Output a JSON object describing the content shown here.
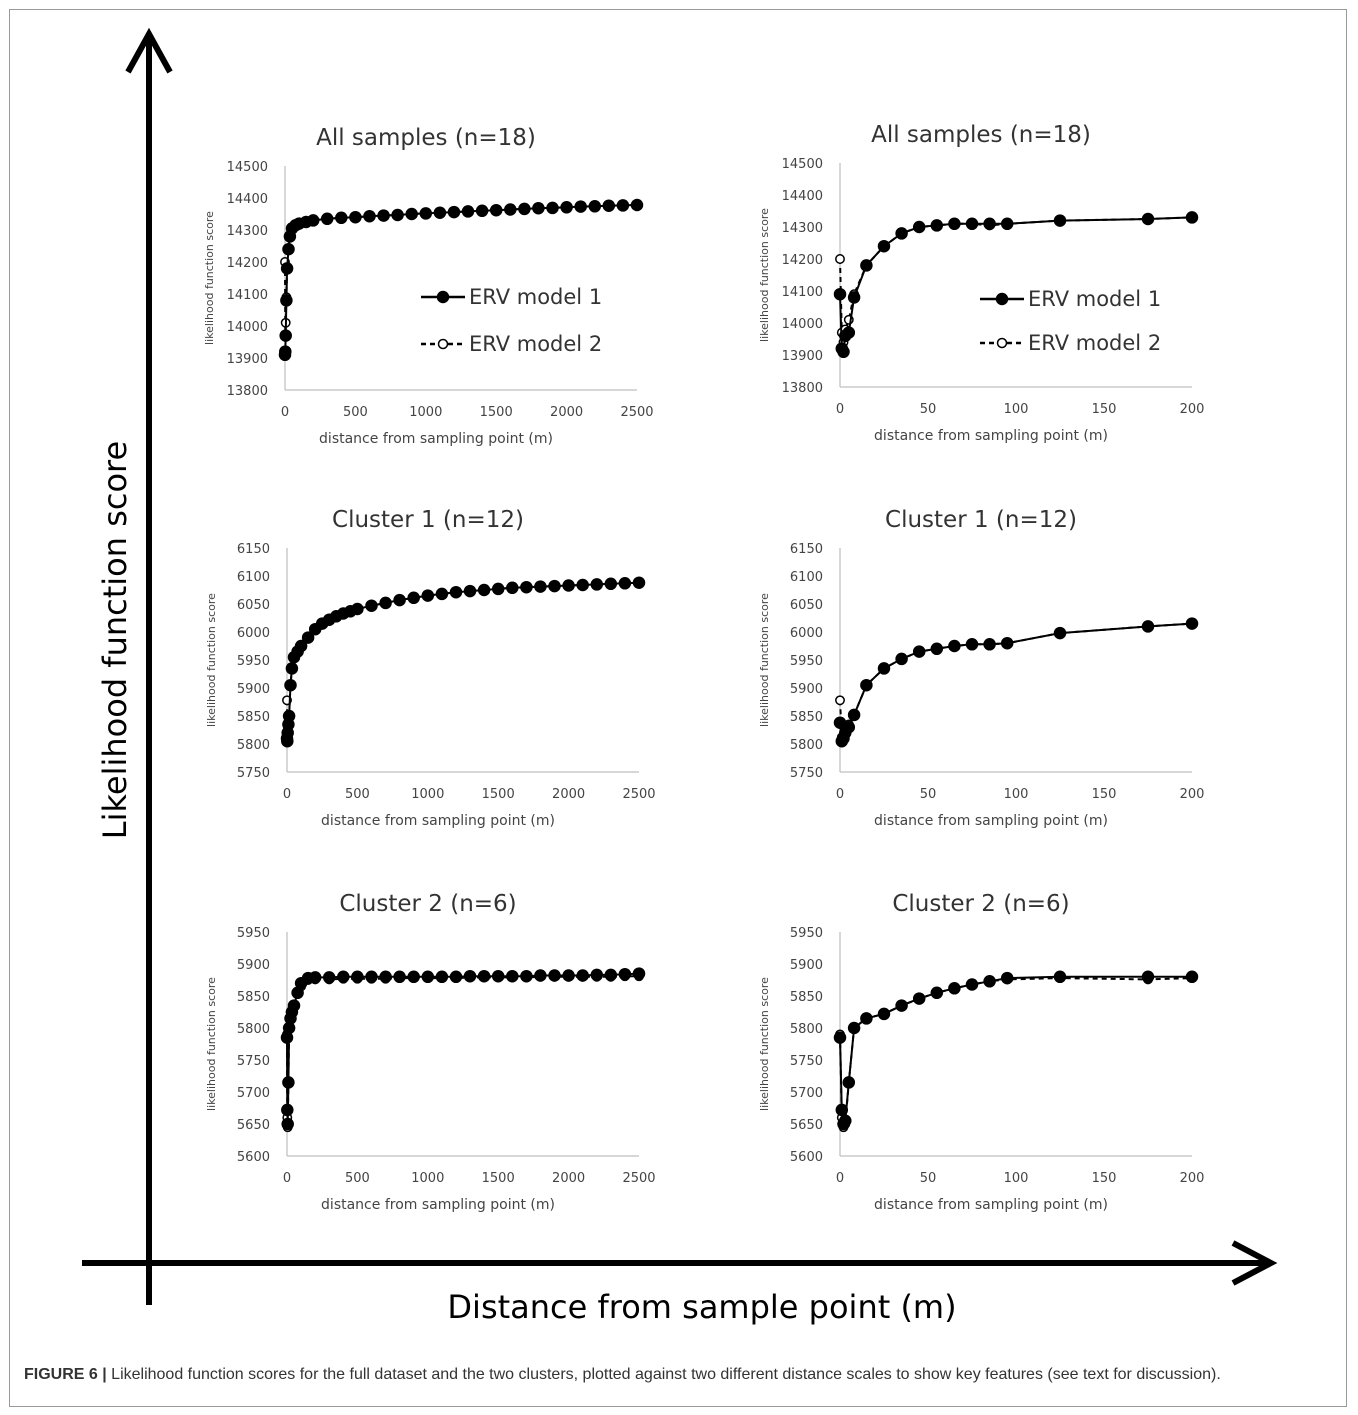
{
  "figure": {
    "big_y_label": "Likelihood function score",
    "big_x_label": "Distance from sample point (m)",
    "caption_label": "FIGURE 6 |",
    "caption_text": " Likelihood function scores for the full dataset and the two clusters, plotted against two different distance scales to show key features (see text for discussion)."
  },
  "colors": {
    "series": "#000000",
    "axis": "#bfbfbf",
    "text": "#333333"
  },
  "chart_data": [
    {
      "id": "all-samples-full",
      "type": "line",
      "title": "All samples (n=18)",
      "xlabel": "distance from sampling point (m)",
      "ylabel": "likelihood function score",
      "xlim": [
        0,
        2500
      ],
      "ylim": [
        13800,
        14500
      ],
      "xticks": [
        "0",
        "500",
        "1000",
        "1500",
        "2000",
        "2500"
      ],
      "yticks": [
        "13800",
        "13900",
        "14000",
        "14100",
        "14200",
        "14300",
        "14400",
        "14500"
      ],
      "legend": "center-right",
      "series": [
        {
          "name": "ERV model 1",
          "style": "solid-filled",
          "x": [
            0,
            2,
            5,
            10,
            15,
            25,
            35,
            50,
            75,
            100,
            150,
            200,
            300,
            400,
            500,
            600,
            700,
            800,
            900,
            1000,
            1100,
            1200,
            1300,
            1400,
            1500,
            1600,
            1700,
            1800,
            1900,
            2000,
            2100,
            2200,
            2300,
            2400,
            2500
          ],
          "y": [
            13910,
            13920,
            13970,
            14080,
            14180,
            14240,
            14280,
            14305,
            14315,
            14320,
            14325,
            14330,
            14335,
            14338,
            14340,
            14343,
            14345,
            14347,
            14350,
            14352,
            14354,
            14356,
            14358,
            14360,
            14362,
            14364,
            14366,
            14368,
            14369,
            14371,
            14373,
            14374,
            14376,
            14377,
            14378
          ]
        },
        {
          "name": "ERV model 2",
          "style": "dashed-open",
          "x": [
            0,
            2,
            5,
            10,
            15,
            25,
            35,
            50,
            75,
            100,
            150,
            200,
            300,
            400,
            500,
            600,
            700,
            800,
            900,
            1000,
            1100,
            1200,
            1300,
            1400,
            1500,
            1600,
            1700,
            1800,
            1900,
            2000,
            2100,
            2200,
            2300,
            2400,
            2500
          ],
          "y": [
            14200,
            13970,
            14010,
            14090,
            14180,
            14240,
            14280,
            14305,
            14315,
            14320,
            14325,
            14330,
            14335,
            14338,
            14340,
            14343,
            14345,
            14347,
            14350,
            14352,
            14354,
            14356,
            14358,
            14360,
            14362,
            14364,
            14366,
            14368,
            14369,
            14371,
            14373,
            14374,
            14376,
            14377,
            14378
          ]
        }
      ]
    },
    {
      "id": "all-samples-zoom",
      "type": "line",
      "title": "All samples (n=18)",
      "xlabel": "distance from sampling point (m)",
      "ylabel": "likelihood function score",
      "xlim": [
        0,
        200
      ],
      "ylim": [
        13800,
        14500
      ],
      "xticks": [
        "0",
        "50",
        "100",
        "150",
        "200"
      ],
      "yticks": [
        "13800",
        "13900",
        "14000",
        "14100",
        "14200",
        "14300",
        "14400",
        "14500"
      ],
      "legend": "center-right",
      "series": [
        {
          "name": "ERV model 1",
          "style": "solid-filled",
          "x": [
            0,
            1,
            2,
            3,
            5,
            8,
            15,
            25,
            35,
            45,
            55,
            65,
            75,
            85,
            95,
            125,
            175,
            200
          ],
          "y": [
            14090,
            13920,
            13910,
            13960,
            13970,
            14080,
            14180,
            14240,
            14280,
            14300,
            14305,
            14310,
            14310,
            14310,
            14310,
            14320,
            14325,
            14330
          ]
        },
        {
          "name": "ERV model 2",
          "style": "dashed-open",
          "x": [
            0,
            1,
            2,
            3,
            5,
            8,
            15,
            25,
            35,
            45,
            55,
            65,
            75,
            85,
            95,
            125,
            175,
            200
          ],
          "y": [
            14200,
            13970,
            13940,
            13980,
            14010,
            14090,
            14180,
            14240,
            14280,
            14300,
            14305,
            14310,
            14310,
            14305,
            14310,
            14320,
            14325,
            14330
          ]
        }
      ]
    },
    {
      "id": "cluster1-full",
      "type": "line",
      "title": "Cluster 1 (n=12)",
      "xlabel": "distance from sampling point (m)",
      "ylabel": "likelihood function score",
      "xlim": [
        0,
        2500
      ],
      "ylim": [
        5750,
        6150
      ],
      "xticks": [
        "0",
        "500",
        "1000",
        "1500",
        "2000",
        "2500"
      ],
      "yticks": [
        "5750",
        "5800",
        "5850",
        "5900",
        "5950",
        "6000",
        "6050",
        "6100",
        "6150"
      ],
      "series": [
        {
          "name": "ERV model 1",
          "style": "solid-filled",
          "x": [
            0,
            2,
            5,
            10,
            15,
            25,
            35,
            50,
            75,
            100,
            150,
            200,
            250,
            300,
            350,
            400,
            450,
            500,
            600,
            700,
            800,
            900,
            1000,
            1100,
            1200,
            1300,
            1400,
            1500,
            1600,
            1700,
            1800,
            1900,
            2000,
            2100,
            2200,
            2300,
            2400,
            2500
          ],
          "y": [
            5810,
            5805,
            5820,
            5835,
            5850,
            5905,
            5935,
            5955,
            5965,
            5975,
            5990,
            6005,
            6015,
            6022,
            6028,
            6033,
            6037,
            6041,
            6047,
            6052,
            6057,
            6061,
            6065,
            6068,
            6071,
            6073,
            6075,
            6077,
            6079,
            6080,
            6081,
            6082,
            6083,
            6084,
            6085,
            6086,
            6087,
            6088
          ]
        },
        {
          "name": "ERV model 2",
          "style": "dashed-open",
          "x": [
            0,
            2,
            5,
            10,
            15,
            25,
            35,
            50,
            75,
            100,
            150,
            200,
            250,
            300,
            350,
            400,
            450,
            500,
            600,
            700,
            800,
            900,
            1000,
            1100,
            1200,
            1300,
            1400,
            1500,
            1600,
            1700,
            1800,
            1900,
            2000,
            2100,
            2200,
            2300,
            2400,
            2500
          ],
          "y": [
            5878,
            5815,
            5825,
            5840,
            5852,
            5905,
            5935,
            5955,
            5965,
            5975,
            5990,
            6005,
            6015,
            6022,
            6028,
            6033,
            6037,
            6041,
            6047,
            6052,
            6057,
            6061,
            6065,
            6068,
            6071,
            6073,
            6075,
            6077,
            6079,
            6080,
            6081,
            6082,
            6083,
            6084,
            6085,
            6086,
            6087,
            6088
          ]
        }
      ]
    },
    {
      "id": "cluster1-zoom",
      "type": "line",
      "title": "Cluster 1 (n=12)",
      "xlabel": "distance from sampling point (m)",
      "ylabel": "likelihood function score",
      "xlim": [
        0,
        200
      ],
      "ylim": [
        5750,
        6150
      ],
      "xticks": [
        "0",
        "50",
        "100",
        "150",
        "200"
      ],
      "yticks": [
        "5750",
        "5800",
        "5850",
        "5900",
        "5950",
        "6000",
        "6050",
        "6100",
        "6150"
      ],
      "series": [
        {
          "name": "ERV model 1",
          "style": "solid-filled",
          "x": [
            0,
            1,
            2,
            3,
            5,
            8,
            15,
            25,
            35,
            45,
            55,
            65,
            75,
            85,
            95,
            125,
            175,
            200
          ],
          "y": [
            5838,
            5805,
            5810,
            5820,
            5830,
            5852,
            5905,
            5935,
            5952,
            5965,
            5970,
            5975,
            5978,
            5978,
            5980,
            5998,
            6010,
            6015
          ]
        },
        {
          "name": "ERV model 2",
          "style": "dashed-open",
          "x": [
            0,
            1,
            2,
            3,
            5,
            8,
            15,
            25,
            35,
            45,
            55,
            65,
            75,
            85,
            95,
            125,
            175,
            200
          ],
          "y": [
            5878,
            5812,
            5815,
            5825,
            5835,
            5852,
            5905,
            5935,
            5952,
            5965,
            5970,
            5975,
            5978,
            5978,
            5980,
            5998,
            6010,
            6015
          ]
        }
      ]
    },
    {
      "id": "cluster2-full",
      "type": "line",
      "title": "Cluster 2 (n=6)",
      "xlabel": "distance from sampling point (m)",
      "ylabel": "likelihood function score",
      "xlim": [
        0,
        2500
      ],
      "ylim": [
        5600,
        5950
      ],
      "xticks": [
        "0",
        "500",
        "1000",
        "1500",
        "2000",
        "2500"
      ],
      "yticks": [
        "5600",
        "5650",
        "5700",
        "5750",
        "5800",
        "5850",
        "5900",
        "5950"
      ],
      "series": [
        {
          "name": "ERV model 1",
          "style": "solid-filled",
          "x": [
            0,
            2,
            5,
            10,
            15,
            25,
            35,
            50,
            75,
            100,
            150,
            200,
            300,
            400,
            500,
            600,
            700,
            800,
            900,
            1000,
            1100,
            1200,
            1300,
            1400,
            1500,
            1600,
            1700,
            1800,
            1900,
            2000,
            2100,
            2200,
            2300,
            2400,
            2500
          ],
          "y": [
            5785,
            5672,
            5650,
            5715,
            5800,
            5815,
            5825,
            5835,
            5855,
            5870,
            5878,
            5879,
            5879,
            5880,
            5880,
            5880,
            5880,
            5880,
            5880,
            5880,
            5880,
            5880,
            5881,
            5881,
            5881,
            5881,
            5881,
            5882,
            5882,
            5882,
            5882,
            5883,
            5883,
            5884,
            5885
          ]
        },
        {
          "name": "ERV model 2",
          "style": "dashed-open",
          "x": [
            0,
            2,
            5,
            10,
            15,
            25,
            35,
            50,
            75,
            100,
            150,
            200,
            300,
            400,
            500,
            600,
            700,
            800,
            900,
            1000,
            1100,
            1200,
            1300,
            1400,
            1500,
            1600,
            1700,
            1800,
            1900,
            2000,
            2100,
            2200,
            2300,
            2400,
            2500
          ],
          "y": [
            5790,
            5660,
            5645,
            5715,
            5800,
            5815,
            5825,
            5835,
            5855,
            5865,
            5875,
            5876,
            5876,
            5877,
            5877,
            5877,
            5877,
            5878,
            5878,
            5878,
            5878,
            5878,
            5879,
            5879,
            5879,
            5879,
            5879,
            5880,
            5880,
            5880,
            5880,
            5880,
            5880,
            5881,
            5881
          ]
        }
      ]
    },
    {
      "id": "cluster2-zoom",
      "type": "line",
      "title": "Cluster 2 (n=6)",
      "xlabel": "distance from sampling point (m)",
      "ylabel": "likelihood function score",
      "xlim": [
        0,
        200
      ],
      "ylim": [
        5600,
        5950
      ],
      "xticks": [
        "0",
        "50",
        "100",
        "150",
        "200"
      ],
      "yticks": [
        "5600",
        "5650",
        "5700",
        "5750",
        "5800",
        "5850",
        "5900",
        "5950"
      ],
      "series": [
        {
          "name": "ERV model 1",
          "style": "solid-filled",
          "x": [
            0,
            1,
            2,
            3,
            5,
            8,
            15,
            25,
            35,
            45,
            55,
            65,
            75,
            85,
            95,
            125,
            175,
            200
          ],
          "y": [
            5785,
            5672,
            5650,
            5655,
            5715,
            5800,
            5815,
            5822,
            5835,
            5846,
            5855,
            5862,
            5868,
            5873,
            5878,
            5880,
            5880,
            5880
          ]
        },
        {
          "name": "ERV model 2",
          "style": "dashed-open",
          "x": [
            0,
            1,
            2,
            3,
            5,
            8,
            15,
            25,
            35,
            45,
            55,
            65,
            75,
            85,
            95,
            125,
            175,
            200
          ],
          "y": [
            5790,
            5660,
            5645,
            5650,
            5715,
            5800,
            5815,
            5822,
            5835,
            5846,
            5855,
            5862,
            5868,
            5873,
            5876,
            5878,
            5876,
            5878
          ]
        }
      ]
    }
  ]
}
